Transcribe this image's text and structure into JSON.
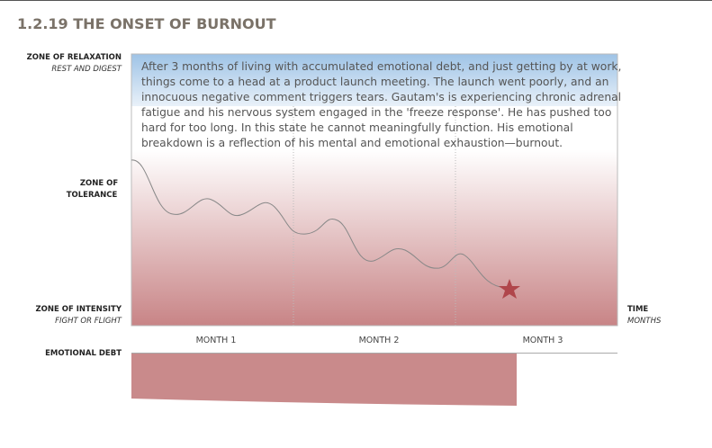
{
  "header": {
    "title": "1.2.19 THE ONSET OF BURNOUT"
  },
  "zones": {
    "relaxation": {
      "label": "ZONE OF RELAXATION",
      "sub": "REST AND DIGEST"
    },
    "tolerance": {
      "label": [
        "ZONE OF",
        "TOLERANCE"
      ]
    },
    "intensity": {
      "label": "ZONE OF INTENSITY",
      "sub": "FIGHT OR FLIGHT"
    }
  },
  "axis": {
    "label": "TIME",
    "sub": "MONTHS",
    "months": [
      "MONTH 1",
      "MONTH 2",
      "MONTH 3"
    ]
  },
  "debt": {
    "label": "EMOTIONAL DEBT"
  },
  "story": [
    "After 3 months of living with accumulated emotional debt, and just getting by at work,",
    "things come to a head at a product launch meeting. The launch went poorly, and an",
    "innocuous negative comment triggers tears. Gautam's is experiencing chronic adrenal",
    "fatigue and his nervous system engaged in the 'freeze response'. He has pushed too",
    "hard for too long. In this state he cannot meaningfully function. His emotional",
    "breakdown is a reflection of his mental and emotional exhaustion—burnout."
  ]
}
